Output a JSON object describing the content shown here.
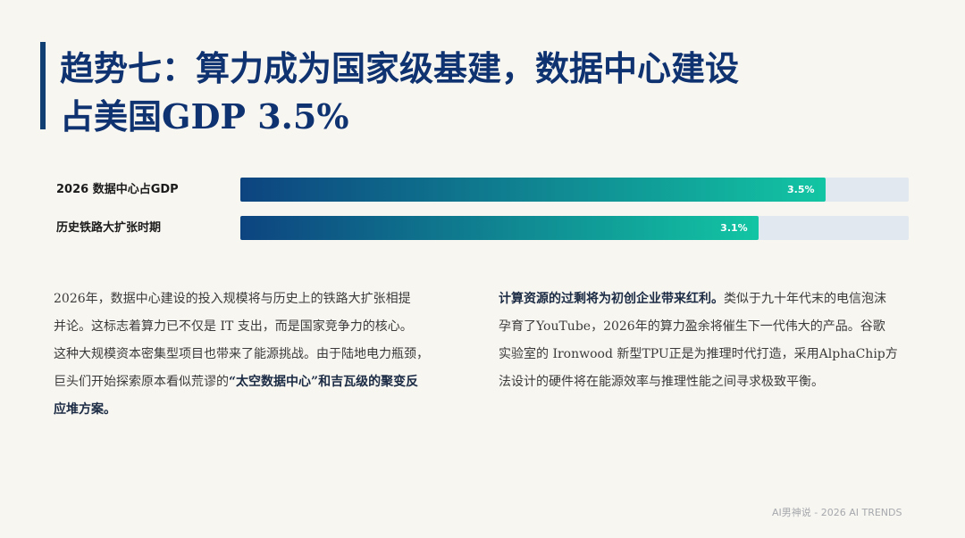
{
  "title": {
    "line1": "趋势七：算力成为国家级基建，数据中心建设",
    "line2": "占美国GDP 3.5%"
  },
  "chart_data": {
    "type": "bar",
    "orientation": "horizontal",
    "categories": [
      "2026 数据中心占GDP",
      "历史铁路大扩张时期"
    ],
    "values": [
      3.5,
      3.1
    ],
    "value_labels": [
      "3.5%",
      "3.1%"
    ],
    "xlim": [
      0,
      4.0
    ],
    "colors": {
      "bar_start": "#0d4480",
      "bar_end": "#12c5a3",
      "track": "#e1e8ef"
    }
  },
  "left_text": {
    "l1": "2026年，数据中心建设的投入规模将与历史上的铁路大扩张相提",
    "l2": "并论。这标志着算力已不仅是 IT 支出，而是国家竞争力的核心。",
    "l3": "这种大规模资本密集型项目也带来了能源挑战。由于陆地电力瓶颈，",
    "l4a": "巨头们开始探索原本看似荒谬的",
    "l4b": "“太空数据中心”和吉瓦级的聚变反",
    "l5": "应堆方案。"
  },
  "right_text": {
    "l1a": "计算资源的过剩将为初创企业带来红利。",
    "l1b": "类似于九十年代末的电信泡沫",
    "l2": "孕育了YouTube，2026年的算力盈余将催生下一代伟大的产品。谷歌",
    "l3": "实验室的 Ironwood 新型TPU正是为推理时代打造，采用AlphaChip方",
    "l4": "法设计的硬件将在能源效率与推理性能之间寻求极致平衡。"
  },
  "footer": "AI男神说 - 2026 AI TRENDS",
  "colors": {
    "accent": "#0f3f73",
    "title": "#0f3270",
    "background": "#f8f6f1"
  }
}
